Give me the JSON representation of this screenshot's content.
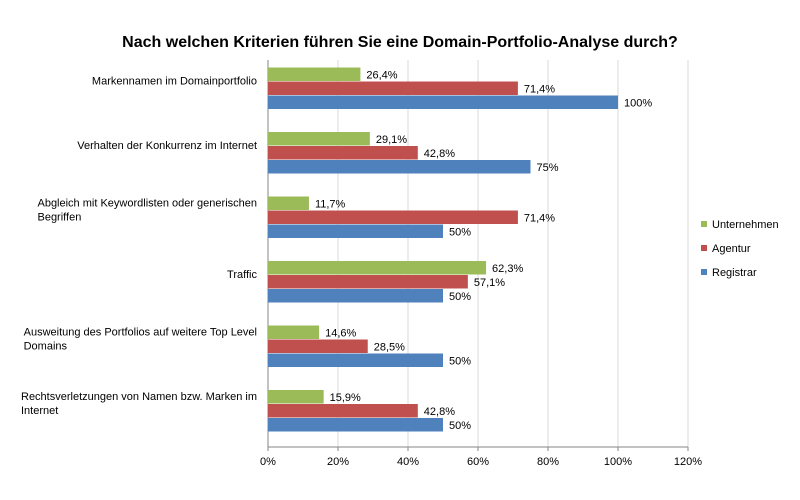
{
  "chart_data": {
    "type": "bar",
    "orientation": "horizontal",
    "title": "Nach welchen Kriterien führen Sie eine Domain-Portfolio-Analyse durch?",
    "categories": [
      [
        "Markennamen im Domainportfolio"
      ],
      [
        "Verhalten der Konkurrenz im Internet"
      ],
      [
        "Abgleich mit Keywordlisten oder generischen",
        "Begriffen"
      ],
      [
        "Traffic"
      ],
      [
        "Ausweitung des Portfolios auf weitere Top Level",
        "Domains"
      ],
      [
        "Rechtsverletzungen von Namen bzw. Marken im",
        "Internet"
      ]
    ],
    "series": [
      {
        "name": "Unternehmen",
        "color": "#9bbb59",
        "values": [
          26.4,
          29.1,
          11.7,
          62.3,
          14.6,
          15.9
        ],
        "labels": [
          "26,4%",
          "29,1%",
          "11,7%",
          "62,3%",
          "14,6%",
          "15,9%"
        ]
      },
      {
        "name": "Agentur",
        "color": "#c0504d",
        "values": [
          71.4,
          42.8,
          71.4,
          57.1,
          28.5,
          42.8
        ],
        "labels": [
          "71,4%",
          "42,8%",
          "71,4%",
          "57,1%",
          "28,5%",
          "42,8%"
        ]
      },
      {
        "name": "Registrar",
        "color": "#4f81bd",
        "values": [
          100,
          75,
          50,
          50,
          50,
          50
        ],
        "labels": [
          "100%",
          "75%",
          "50%",
          "50%",
          "50%",
          "50%"
        ]
      }
    ],
    "xlim": [
      0,
      120
    ],
    "xticks": [
      0,
      20,
      40,
      60,
      80,
      100,
      120
    ],
    "xtick_labels": [
      "0%",
      "20%",
      "40%",
      "60%",
      "80%",
      "100%",
      "120%"
    ],
    "grid": true,
    "legend_position": "right"
  }
}
